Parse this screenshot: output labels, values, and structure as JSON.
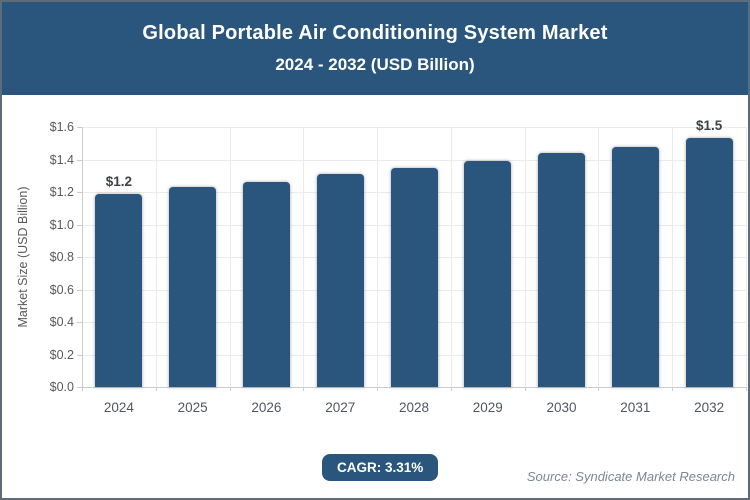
{
  "header": {
    "title_line1": "Global Portable Air Conditioning System Market",
    "title_line2": "2024 - 2032 (USD Billion)"
  },
  "chart_data": {
    "type": "bar",
    "title": "Global Portable Air Conditioning System Market 2024 - 2032 (USD Billion)",
    "categories": [
      "2024",
      "2025",
      "2026",
      "2027",
      "2028",
      "2029",
      "2030",
      "2031",
      "2032"
    ],
    "values": [
      1.19,
      1.23,
      1.26,
      1.31,
      1.35,
      1.39,
      1.44,
      1.48,
      1.53
    ],
    "data_labels": [
      "$1.2",
      "",
      "",
      "",
      "",
      "",
      "",
      "",
      "$1.5"
    ],
    "xlabel": "",
    "ylabel": "Market Size (USD Billion)",
    "ylim": [
      0,
      1.6
    ],
    "ytick_step": 0.2,
    "ytick_labels": [
      "$0.0",
      "$0.2",
      "$0.4",
      "$0.6",
      "$0.8",
      "$1.0",
      "$1.2",
      "$1.4",
      "$1.6"
    ],
    "grid": "horizontal and vertical, light gray",
    "legend": "none",
    "bar_color": "#2A567D"
  },
  "footer": {
    "cagr_label": "CAGR: 3.31%",
    "source": "Source: Syndicate Market Research"
  },
  "colors": {
    "header_bg": "#2A567D",
    "bar": "#2A567D",
    "badge_bg": "#2A567D",
    "page_border": "#5E6C79",
    "grid": "#ebebeb",
    "axis": "#c9cdd1",
    "tick_text": "#595959",
    "data_label_text": "#3E4347",
    "source_text": "#7A8796"
  }
}
